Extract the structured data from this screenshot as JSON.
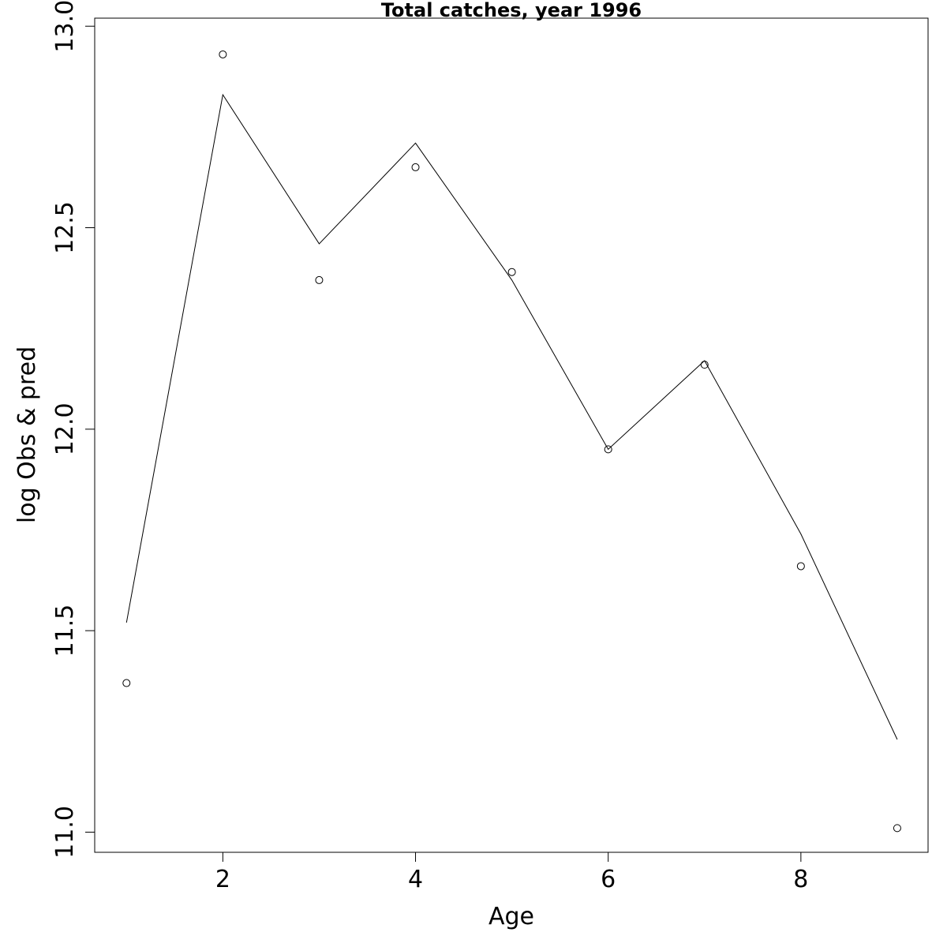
{
  "chart_data": {
    "type": "line",
    "title": "Total catches, year 1996",
    "xlabel": "Age",
    "ylabel": "log Obs & pred",
    "xlim": [
      0.67,
      9.32
    ],
    "ylim": [
      10.95,
      13.02
    ],
    "x_ticks": [
      2,
      4,
      6,
      8
    ],
    "x_tick_labels": [
      "2",
      "4",
      "6",
      "8"
    ],
    "y_ticks": [
      11.0,
      11.5,
      12.0,
      12.5,
      13.0
    ],
    "y_tick_labels": [
      "11.0",
      "11.5",
      "12.0",
      "12.5",
      "13.0"
    ],
    "grid": false,
    "legend": "none",
    "series": [
      {
        "style": "points",
        "marker": "open-circle",
        "x": [
          1,
          2,
          3,
          4,
          5,
          6,
          7,
          8,
          9
        ],
        "y": [
          11.37,
          12.93,
          12.37,
          12.65,
          12.39,
          11.95,
          12.16,
          11.66,
          11.01
        ]
      },
      {
        "style": "line",
        "x": [
          1,
          2,
          3,
          4,
          5,
          6,
          7,
          8,
          9
        ],
        "y": [
          11.52,
          12.83,
          12.46,
          12.71,
          12.37,
          11.95,
          12.17,
          11.74,
          11.23
        ]
      }
    ],
    "colors": {
      "line": "#000000",
      "points": "#000000",
      "axes": "#000000"
    }
  }
}
